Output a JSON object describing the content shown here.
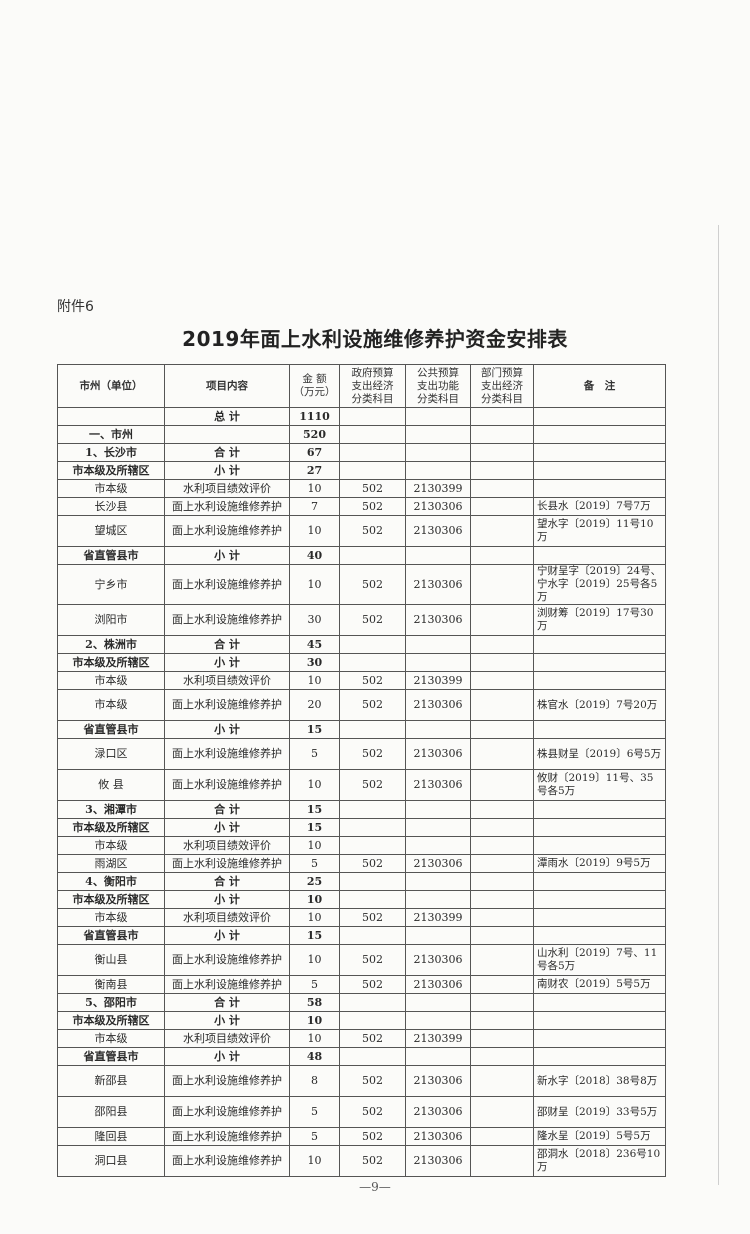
{
  "attachment_label": "附件6",
  "title": "2019年面上水利设施维修养护资金安排表",
  "columns": [
    "市州（单位）",
    "项目内容",
    "金 额\n（万元）",
    "政府预算\n支出经济\n分类科目",
    "公共预算\n支出功能\n分类科目",
    "部门预算\n支出经济\n分类科目",
    "备　注"
  ],
  "rows": [
    {
      "kind": "sum",
      "unit": "",
      "project": "总 计",
      "amount": "1110",
      "gov": "",
      "pub": "",
      "dept": "",
      "note": ""
    },
    {
      "kind": "sum",
      "unit": "一、市州",
      "project": "",
      "amount": "520",
      "gov": "",
      "pub": "",
      "dept": "",
      "note": ""
    },
    {
      "kind": "sum",
      "unit": "1、长沙市",
      "project": "合 计",
      "amount": "67",
      "gov": "",
      "pub": "",
      "dept": "",
      "note": ""
    },
    {
      "kind": "sum",
      "unit": "市本级及所辖区",
      "project": "小 计",
      "amount": "27",
      "gov": "",
      "pub": "",
      "dept": "",
      "note": ""
    },
    {
      "kind": "item",
      "unit": "市本级",
      "project": "水利项目绩效评价",
      "amount": "10",
      "gov": "502",
      "pub": "2130399",
      "dept": "",
      "note": ""
    },
    {
      "kind": "item",
      "unit": "长沙县",
      "project": "面上水利设施维修养护",
      "amount": "7",
      "gov": "502",
      "pub": "2130306",
      "dept": "",
      "note": "长县水〔2019〕7号7万"
    },
    {
      "kind": "item",
      "unit": "望城区",
      "project": "面上水利设施维修养护",
      "amount": "10",
      "gov": "502",
      "pub": "2130306",
      "dept": "",
      "note": "望水字〔2019〕11号10万"
    },
    {
      "kind": "sum",
      "unit": "省直管县市",
      "project": "小 计",
      "amount": "40",
      "gov": "",
      "pub": "",
      "dept": "",
      "note": ""
    },
    {
      "kind": "item",
      "unit": "宁乡市",
      "project": "面上水利设施维修养护",
      "amount": "10",
      "gov": "502",
      "pub": "2130306",
      "dept": "",
      "note": "宁财呈字〔2019〕24号、宁水字〔2019〕25号各5万"
    },
    {
      "kind": "item",
      "unit": "浏阳市",
      "project": "面上水利设施维修养护",
      "amount": "30",
      "gov": "502",
      "pub": "2130306",
      "dept": "",
      "note": "浏财筹〔2019〕17号30万"
    },
    {
      "kind": "sum",
      "unit": "2、株洲市",
      "project": "合 计",
      "amount": "45",
      "gov": "",
      "pub": "",
      "dept": "",
      "note": ""
    },
    {
      "kind": "sum",
      "unit": "市本级及所辖区",
      "project": "小 计",
      "amount": "30",
      "gov": "",
      "pub": "",
      "dept": "",
      "note": ""
    },
    {
      "kind": "item",
      "unit": "市本级",
      "project": "水利项目绩效评价",
      "amount": "10",
      "gov": "502",
      "pub": "2130399",
      "dept": "",
      "note": ""
    },
    {
      "kind": "item",
      "unit": "市本级",
      "project": "面上水利设施维修养护",
      "amount": "20",
      "gov": "502",
      "pub": "2130306",
      "dept": "",
      "note": "株官水〔2019〕7号20万"
    },
    {
      "kind": "sum",
      "unit": "省直管县市",
      "project": "小 计",
      "amount": "15",
      "gov": "",
      "pub": "",
      "dept": "",
      "note": ""
    },
    {
      "kind": "item",
      "unit": "渌口区",
      "project": "面上水利设施维修养护",
      "amount": "5",
      "gov": "502",
      "pub": "2130306",
      "dept": "",
      "note": "株县财呈〔2019〕6号5万"
    },
    {
      "kind": "item",
      "unit": "攸 县",
      "project": "面上水利设施维修养护",
      "amount": "10",
      "gov": "502",
      "pub": "2130306",
      "dept": "",
      "note": "攸财〔2019〕11号、35号各5万"
    },
    {
      "kind": "sum",
      "unit": "3、湘潭市",
      "project": "合 计",
      "amount": "15",
      "gov": "",
      "pub": "",
      "dept": "",
      "note": ""
    },
    {
      "kind": "sum",
      "unit": "市本级及所辖区",
      "project": "小 计",
      "amount": "15",
      "gov": "",
      "pub": "",
      "dept": "",
      "note": ""
    },
    {
      "kind": "item",
      "unit": "市本级",
      "project": "水利项目绩效评价",
      "amount": "10",
      "gov": "",
      "pub": "",
      "dept": "",
      "note": ""
    },
    {
      "kind": "item",
      "unit": "雨湖区",
      "project": "面上水利设施维修养护",
      "amount": "5",
      "gov": "502",
      "pub": "2130306",
      "dept": "",
      "note": "潭雨水〔2019〕9号5万"
    },
    {
      "kind": "sum",
      "unit": "4、衡阳市",
      "project": "合 计",
      "amount": "25",
      "gov": "",
      "pub": "",
      "dept": "",
      "note": ""
    },
    {
      "kind": "sum",
      "unit": "市本级及所辖区",
      "project": "小 计",
      "amount": "10",
      "gov": "",
      "pub": "",
      "dept": "",
      "note": ""
    },
    {
      "kind": "item",
      "unit": "市本级",
      "project": "水利项目绩效评价",
      "amount": "10",
      "gov": "502",
      "pub": "2130399",
      "dept": "",
      "note": ""
    },
    {
      "kind": "sum",
      "unit": "省直管县市",
      "project": "小 计",
      "amount": "15",
      "gov": "",
      "pub": "",
      "dept": "",
      "note": ""
    },
    {
      "kind": "item",
      "unit": "衡山县",
      "project": "面上水利设施维修养护",
      "amount": "10",
      "gov": "502",
      "pub": "2130306",
      "dept": "",
      "note": "山水利〔2019〕7号、11号各5万"
    },
    {
      "kind": "item",
      "unit": "衡南县",
      "project": "面上水利设施维修养护",
      "amount": "5",
      "gov": "502",
      "pub": "2130306",
      "dept": "",
      "note": "南财农〔2019〕5号5万"
    },
    {
      "kind": "sum",
      "unit": "5、邵阳市",
      "project": "合 计",
      "amount": "58",
      "gov": "",
      "pub": "",
      "dept": "",
      "note": ""
    },
    {
      "kind": "sum",
      "unit": "市本级及所辖区",
      "project": "小 计",
      "amount": "10",
      "gov": "",
      "pub": "",
      "dept": "",
      "note": ""
    },
    {
      "kind": "item",
      "unit": "市本级",
      "project": "水利项目绩效评价",
      "amount": "10",
      "gov": "502",
      "pub": "2130399",
      "dept": "",
      "note": ""
    },
    {
      "kind": "sum",
      "unit": "省直管县市",
      "project": "小 计",
      "amount": "48",
      "gov": "",
      "pub": "",
      "dept": "",
      "note": ""
    },
    {
      "kind": "item",
      "unit": "新邵县",
      "project": "面上水利设施维修养护",
      "amount": "8",
      "gov": "502",
      "pub": "2130306",
      "dept": "",
      "note": "新水字〔2018〕38号8万"
    },
    {
      "kind": "item",
      "unit": "邵阳县",
      "project": "面上水利设施维修养护",
      "amount": "5",
      "gov": "502",
      "pub": "2130306",
      "dept": "",
      "note": "邵财呈〔2019〕33号5万"
    },
    {
      "kind": "item",
      "unit": "隆回县",
      "project": "面上水利设施维修养护",
      "amount": "5",
      "gov": "502",
      "pub": "2130306",
      "dept": "",
      "note": "隆水呈〔2019〕5号5万"
    },
    {
      "kind": "item",
      "unit": "洞口县",
      "project": "面上水利设施维修养护",
      "amount": "10",
      "gov": "502",
      "pub": "2130306",
      "dept": "",
      "note": "邵洞水〔2018〕236号10万"
    }
  ],
  "page_number": "—9—"
}
